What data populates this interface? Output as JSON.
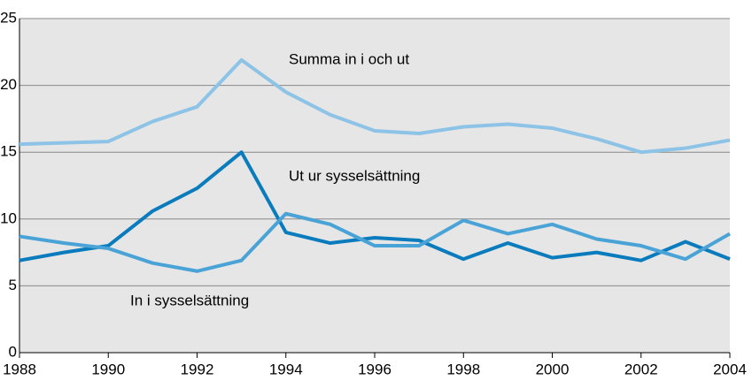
{
  "chart_data": {
    "type": "line",
    "x": [
      1988,
      1989,
      1990,
      1991,
      1992,
      1993,
      1994,
      1995,
      1996,
      1997,
      1998,
      1999,
      2000,
      2001,
      2002,
      2003,
      2004
    ],
    "series": [
      {
        "name": "Summa in i och ut",
        "color": "#8cc3e6",
        "values": [
          15.6,
          15.7,
          15.8,
          17.3,
          18.4,
          21.9,
          19.5,
          17.8,
          16.6,
          16.4,
          16.9,
          17.1,
          16.8,
          16.0,
          15.0,
          15.3,
          15.9
        ]
      },
      {
        "name": "Ut ur sysselsättning",
        "color": "#0a7cbd",
        "values": [
          6.9,
          7.5,
          8.0,
          10.6,
          12.3,
          15.0,
          9.0,
          8.2,
          8.6,
          8.4,
          7.0,
          8.2,
          7.1,
          7.5,
          6.9,
          8.3,
          7.0
        ]
      },
      {
        "name": "In i sysselsättning",
        "color": "#4aa3d6",
        "values": [
          8.7,
          8.2,
          7.8,
          6.7,
          6.1,
          6.9,
          10.4,
          9.6,
          8.0,
          8.0,
          9.9,
          8.9,
          9.6,
          8.5,
          8.0,
          7.0,
          8.9
        ]
      }
    ],
    "xlim": [
      1988,
      2004
    ],
    "xticks": [
      1988,
      1990,
      1992,
      1994,
      1996,
      1998,
      2000,
      2002,
      2004
    ],
    "ylim": [
      0,
      25
    ],
    "yticks": [
      0,
      5,
      10,
      15,
      20,
      25
    ],
    "grid": true
  }
}
